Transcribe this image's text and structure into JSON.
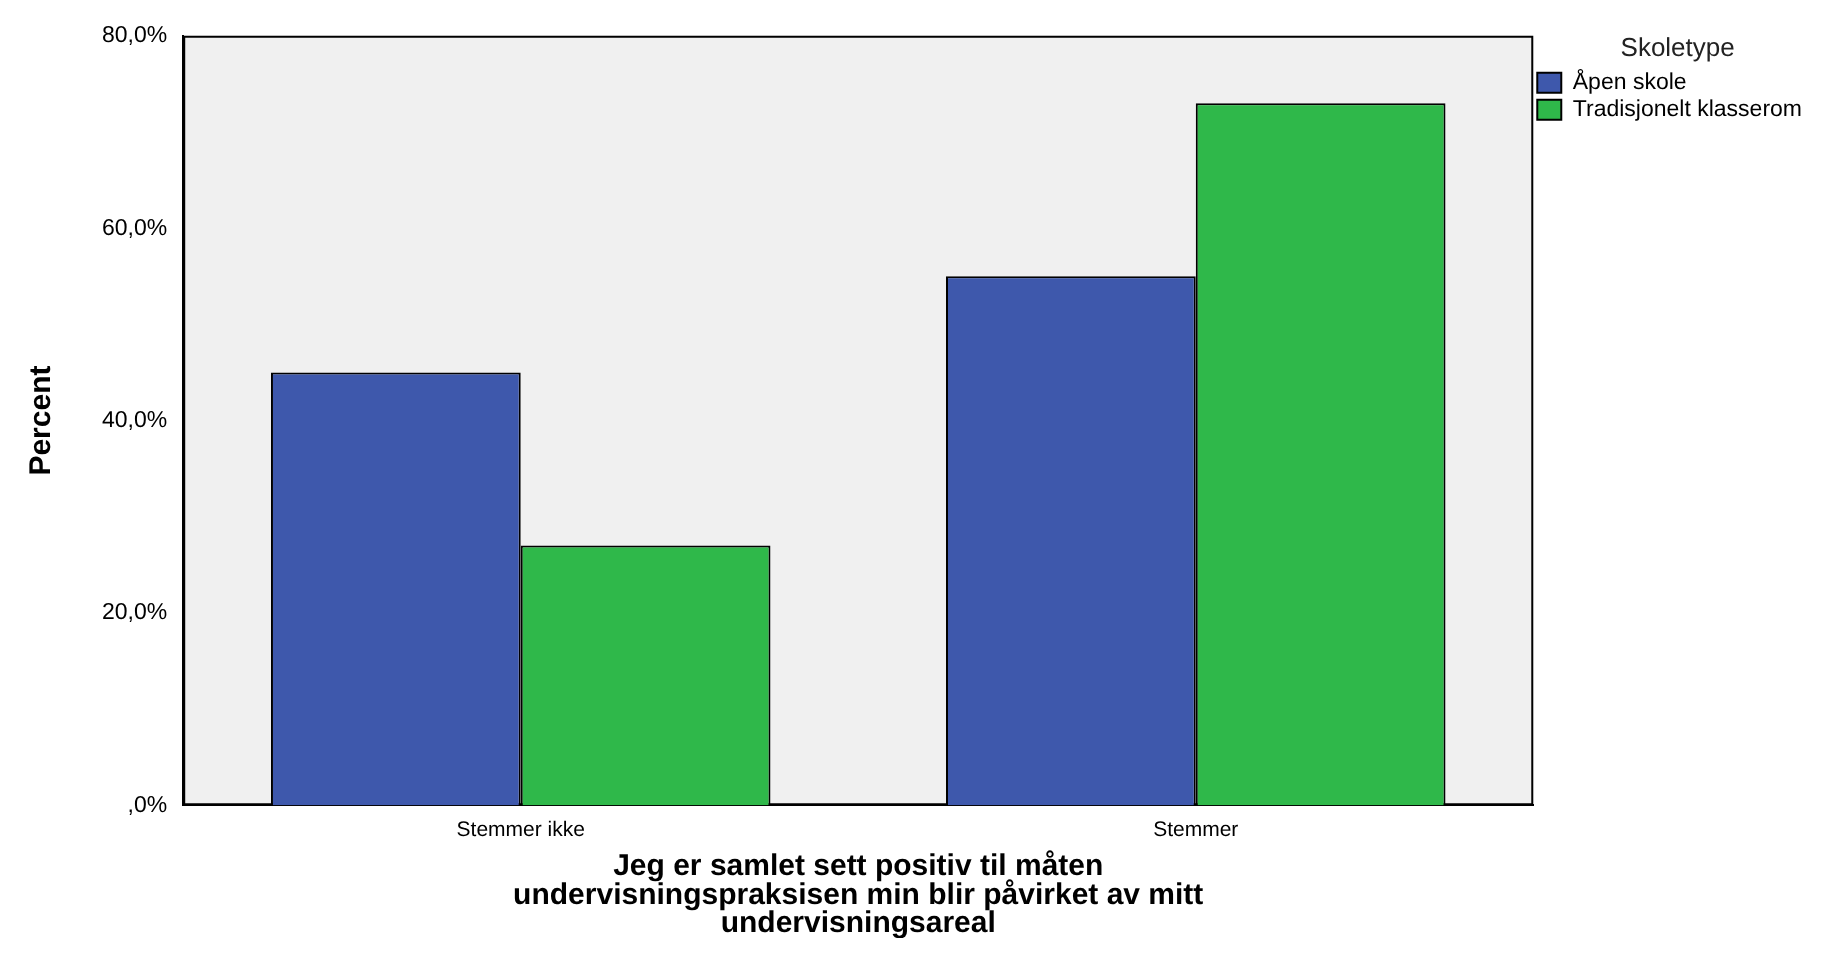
{
  "chart_data": {
    "type": "bar",
    "xlabel": "Jeg er samlet sett positiv til måten undervisningspraksisen min blir påvirket av mitt undervisningsareal",
    "ylabel": "Percent",
    "legend_title": "Skoletype",
    "legend": "top right",
    "categories": [
      "Stemmer ikke",
      "Stemmer"
    ],
    "series": [
      {
        "name": "Åpen skole",
        "color": "#3e58ac",
        "values": [
          45,
          55
        ]
      },
      {
        "name": "Tradisjonelt klasserom",
        "color": "#2fb84a",
        "values": [
          27,
          73
        ]
      }
    ],
    "ylim": [
      0,
      80
    ],
    "yticks": [
      {
        "value": 0,
        "label": ",0%"
      },
      {
        "value": 20,
        "label": "20,0%"
      },
      {
        "value": 40,
        "label": "40,0%"
      },
      {
        "value": 60,
        "label": "60,0%"
      },
      {
        "value": 80,
        "label": "80,0%"
      }
    ]
  }
}
